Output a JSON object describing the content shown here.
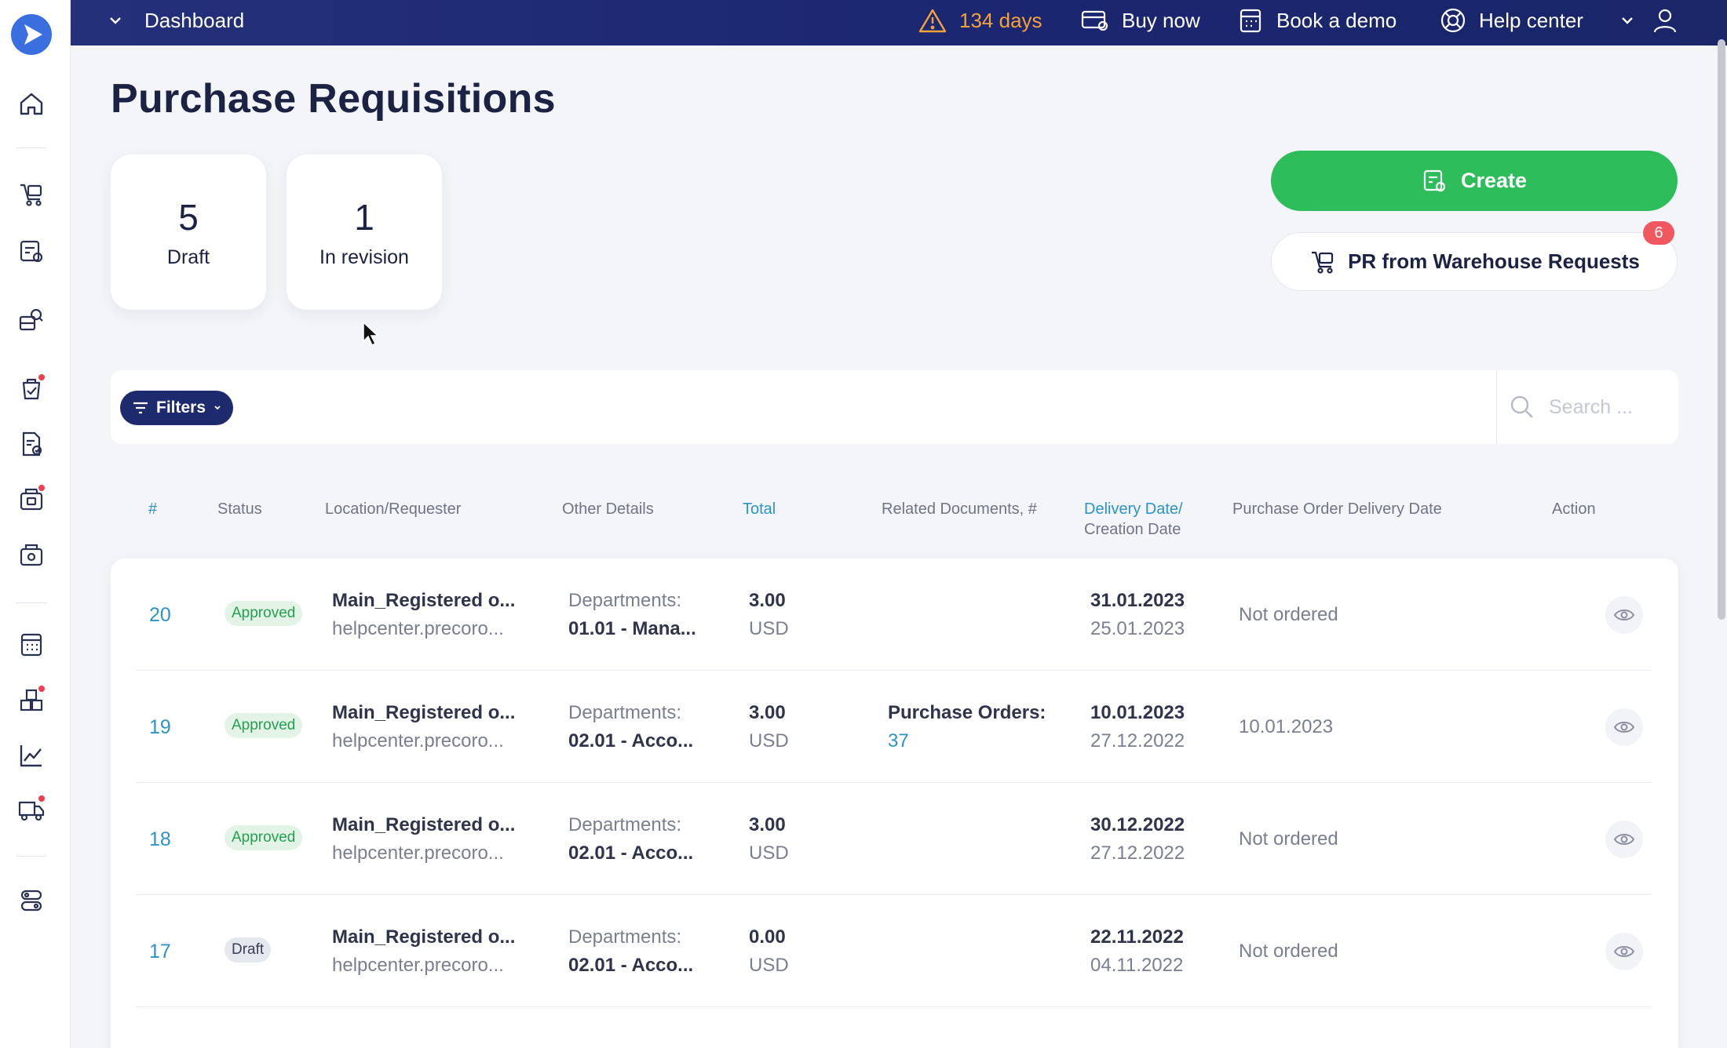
{
  "topbar": {
    "dashboard_label": "Dashboard",
    "trial_days": "134 days",
    "buy_now": "Buy now",
    "book_demo": "Book a demo",
    "help_center": "Help center"
  },
  "page": {
    "title": "Purchase Requisitions"
  },
  "stats": [
    {
      "value": "5",
      "label": "Draft"
    },
    {
      "value": "1",
      "label": "In revision"
    }
  ],
  "actions": {
    "create_label": "Create",
    "pr_warehouse_label": "PR from Warehouse Requests",
    "pr_warehouse_count": "6"
  },
  "filters": {
    "filters_label": "Filters",
    "search_placeholder": "Search ..."
  },
  "table": {
    "headers": {
      "id": "#",
      "status": "Status",
      "location": "Location/Requester",
      "other": "Other Details",
      "total": "Total",
      "related": "Related Documents, #",
      "delivery_line1": "Delivery Date/",
      "delivery_line2": "Creation Date",
      "po_delivery": "Purchase Order Delivery Date",
      "action": "Action"
    },
    "rows": [
      {
        "id": "20",
        "status": "Approved",
        "location": "Main_Registered o...",
        "requester": "helpcenter.precoro...",
        "details_label": "Departments:",
        "details_value": "01.01 - Mana...",
        "total": "3.00",
        "currency": "USD",
        "related_label": "",
        "related_value": "",
        "delivery_date": "31.01.2023",
        "creation_date": "25.01.2023",
        "po_delivery": "Not ordered"
      },
      {
        "id": "19",
        "status": "Approved",
        "location": "Main_Registered o...",
        "requester": "helpcenter.precoro...",
        "details_label": "Departments:",
        "details_value": "02.01 - Acco...",
        "total": "3.00",
        "currency": "USD",
        "related_label": "Purchase Orders:",
        "related_value": "37",
        "delivery_date": "10.01.2023",
        "creation_date": "27.12.2022",
        "po_delivery": "10.01.2023"
      },
      {
        "id": "18",
        "status": "Approved",
        "location": "Main_Registered o...",
        "requester": "helpcenter.precoro...",
        "details_label": "Departments:",
        "details_value": "02.01 - Acco...",
        "total": "3.00",
        "currency": "USD",
        "related_label": "",
        "related_value": "",
        "delivery_date": "30.12.2022",
        "creation_date": "27.12.2022",
        "po_delivery": "Not ordered"
      },
      {
        "id": "17",
        "status": "Draft",
        "location": "Main_Registered o...",
        "requester": "helpcenter.precoro...",
        "details_label": "Departments:",
        "details_value": "02.01 - Acco...",
        "total": "0.00",
        "currency": "USD",
        "related_label": "",
        "related_value": "",
        "delivery_date": "22.11.2022",
        "creation_date": "04.11.2022",
        "po_delivery": "Not ordered"
      }
    ]
  },
  "colors": {
    "accent_green": "#2dbd5a",
    "topbar_navy": "#1b2670",
    "link_blue": "#2c93c9",
    "alert_red": "#f03e4e"
  }
}
